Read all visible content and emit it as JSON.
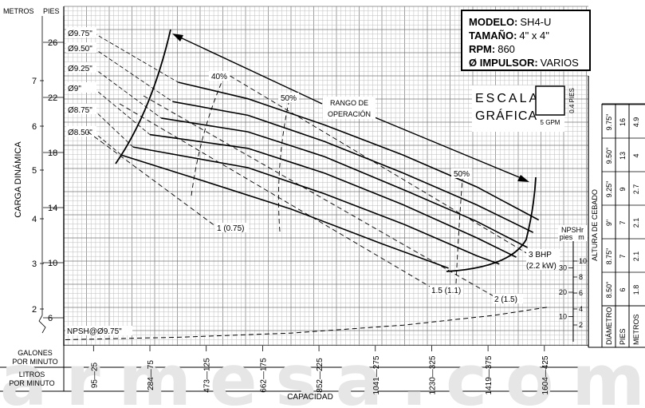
{
  "watermark": "armesa.com",
  "info_box": [
    {
      "label": "MODELO:",
      "value": "SH4-U"
    },
    {
      "label": "TAMAÑO:",
      "value": "4\" x 4\""
    },
    {
      "label": "RPM:",
      "value": "860"
    },
    {
      "label": "Ø IMPULSOR:",
      "value": "VARIOS"
    }
  ],
  "scale_box": {
    "line1": "ESCALA",
    "line2": "GRÁFICA",
    "vertical": "0.4 PIES",
    "horizontal": "5 GPM"
  },
  "operating_range": {
    "line1": "RANGO DE",
    "line2": "OPERACIÓN"
  },
  "side_table": {
    "row_labels": [
      "DIÁMETRO",
      "PIES",
      "METROS"
    ],
    "title": "ALTURA DE CEBADO",
    "rows": [
      {
        "diameter": "8.50\"",
        "pies": "6",
        "metros": "1.8"
      },
      {
        "diameter": "8.75\"",
        "pies": "7",
        "metros": "2.1"
      },
      {
        "diameter": "9\"",
        "pies": "7",
        "metros": "2.1"
      },
      {
        "diameter": "9.25\"",
        "pies": "9",
        "metros": "2.7"
      },
      {
        "diameter": "9.50\"",
        "pies": "13",
        "metros": "4"
      },
      {
        "diameter": "9.75\"",
        "pies": "16",
        "metros": "4.9"
      }
    ]
  },
  "npshr_axis": {
    "title": "NPSHr",
    "unit_pies": "pies",
    "unit_m": "m",
    "pies_ticks": [
      "10",
      "20",
      "30"
    ],
    "m_ticks": [
      "2",
      "4",
      "6",
      "8",
      "10"
    ]
  },
  "chart_data": {
    "type": "line",
    "title": "",
    "xlabel": "CAPACIDAD",
    "ylabel": "CARGA DINÁMICA",
    "y_units_top": {
      "metros": "METROS",
      "pies": "PIES"
    },
    "ylim_pies": [
      4,
      28
    ],
    "y_ticks_pies": [
      "6",
      "10",
      "14",
      "18",
      "22",
      "26"
    ],
    "y_ticks_metros": [
      "2",
      "3",
      "4",
      "5",
      "6",
      "7"
    ],
    "x_axis_gpm": {
      "label_line1": "GALONES",
      "label_line2": "POR MINUTO",
      "ticks": [
        "25",
        "75",
        "125",
        "175",
        "225",
        "275",
        "325",
        "375",
        "425"
      ],
      "range": [
        0,
        440
      ]
    },
    "x_axis_lpm": {
      "label_line1": "LITROS",
      "label_line2": "POR MINUTO",
      "ticks": [
        "95",
        "284",
        "473",
        "662",
        "852",
        "1041",
        "1230",
        "1419",
        "1604"
      ]
    },
    "series": [
      {
        "name": "Ø9.75\"",
        "x": [
          100,
          162,
          230,
          300,
          365,
          420
        ],
        "y": [
          23.1,
          21.9,
          20.0,
          17.8,
          15.5,
          13.1
        ]
      },
      {
        "name": "Ø9.50\"",
        "x": [
          95,
          162,
          230,
          300,
          365,
          415
        ],
        "y": [
          21.7,
          20.7,
          18.8,
          16.5,
          14.2,
          12.2
        ]
      },
      {
        "name": "Ø9.25\"",
        "x": [
          85,
          162,
          230,
          300,
          365,
          410
        ],
        "y": [
          20.5,
          19.5,
          17.7,
          15.3,
          13.0,
          11.1
        ]
      },
      {
        "name": "Ø9\"",
        "x": [
          75,
          162,
          230,
          300,
          365,
          400
        ],
        "y": [
          19.3,
          18.3,
          16.5,
          14.2,
          11.8,
          10.4
        ]
      },
      {
        "name": "Ø8.75\"",
        "x": [
          60,
          162,
          230,
          300,
          365,
          385
        ],
        "y": [
          18.4,
          16.9,
          15.0,
          12.8,
          10.5,
          9.9
        ]
      },
      {
        "name": "Ø8.50\"",
        "x": [
          50,
          120,
          200,
          280,
          340
        ],
        "y": [
          17.8,
          16.0,
          13.9,
          11.4,
          9.6
        ]
      }
    ],
    "efficiency_labels": [
      "40%",
      "50%",
      "50%"
    ],
    "bhp_labels": [
      "1 (0.75)",
      "1.5 (1.1)",
      "2 (1.5)",
      "3 BHP",
      "(2.2 kW)"
    ],
    "npsh_curve": {
      "name": "NPSH@Ø9.75\"",
      "x": [
        0,
        100,
        200,
        300,
        380,
        430
      ],
      "y_npshr_pies": [
        0.5,
        1.5,
        3.2,
        6.5,
        10.5,
        14
      ]
    }
  }
}
